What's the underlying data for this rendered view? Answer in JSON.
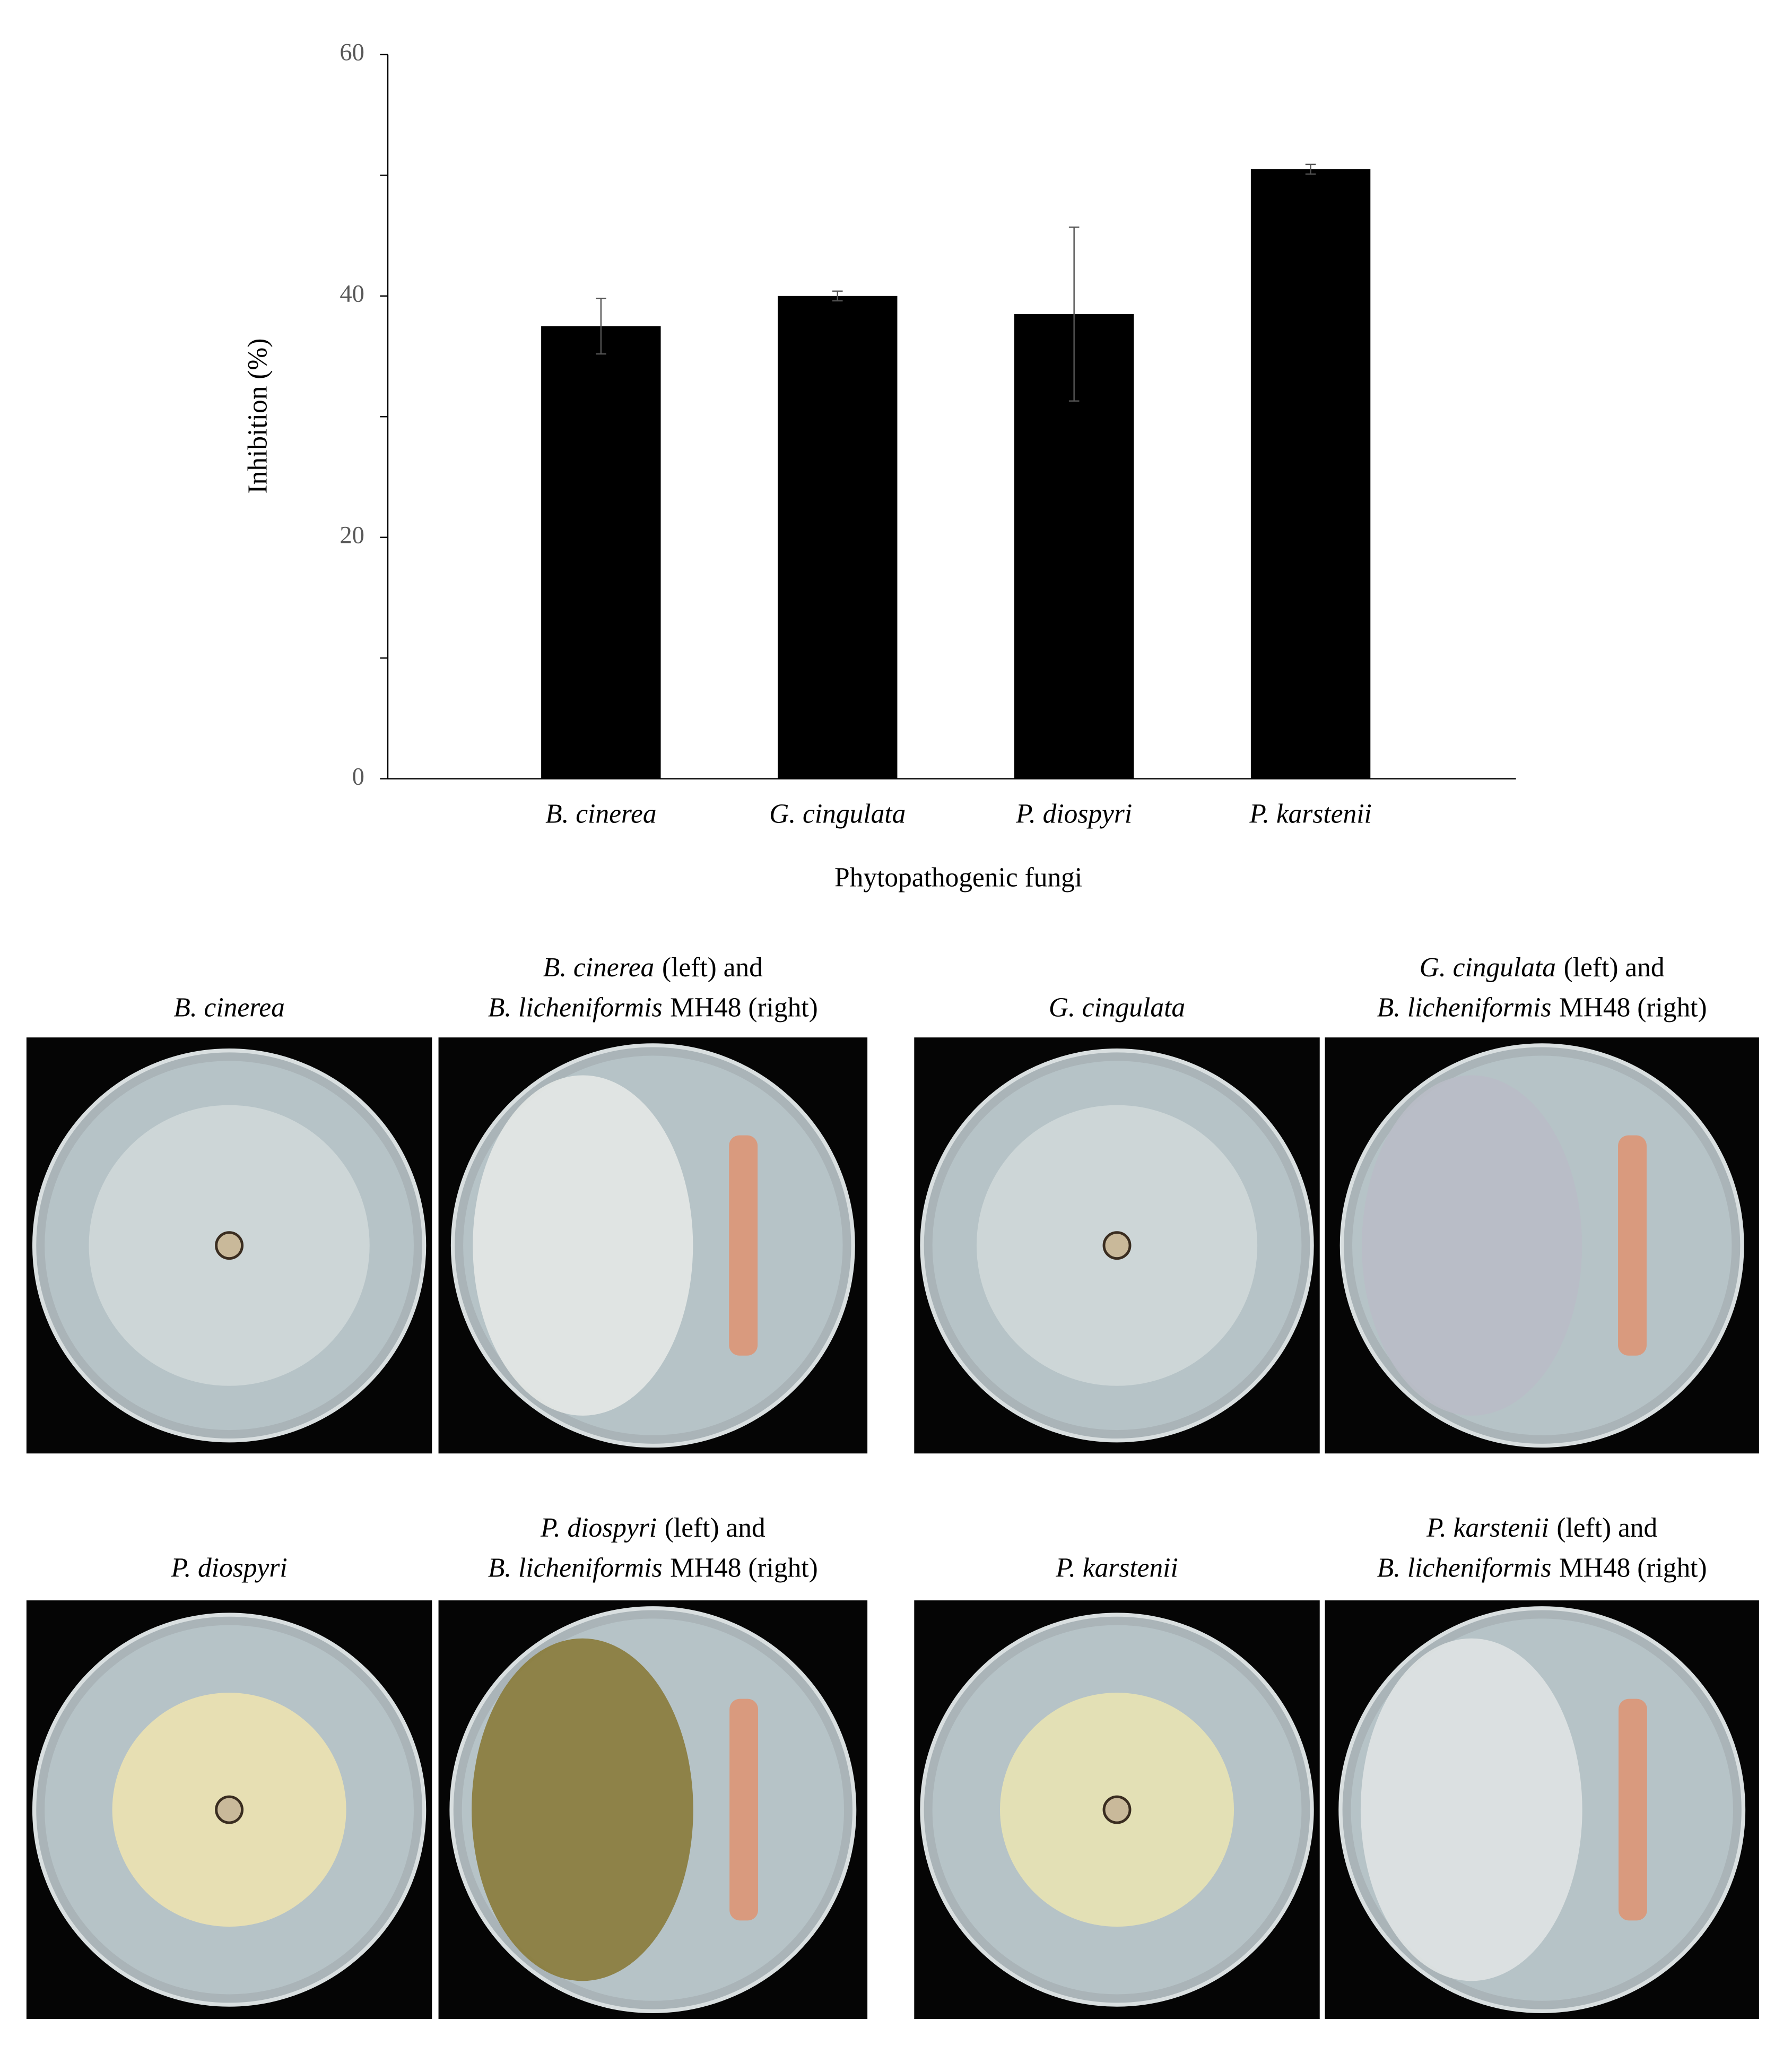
{
  "chart_data": {
    "type": "bar",
    "y_label": "Inhibition (%)",
    "x_label": "Phytopathogenic fungi",
    "categories": [
      "B. cinerea",
      "G. cingulata",
      "P. diospyri",
      "P. karstenii"
    ],
    "values": [
      37.5,
      40,
      38.5,
      50.5
    ],
    "errors": [
      2.3,
      0.4,
      7.2,
      0.4
    ],
    "color": "#000000",
    "ylim": [
      0,
      60
    ],
    "yticks": [
      0,
      20,
      40,
      60
    ],
    "minor_yticks": [
      10,
      30,
      50
    ]
  },
  "panels": [
    {
      "caption": [
        [
          {
            "text": "B. cinerea",
            "italic": true
          }
        ]
      ]
    },
    {
      "caption": [
        [
          {
            "text": "B. cinerea",
            "italic": true
          },
          {
            "text": "(left) and"
          }
        ],
        [
          {
            "text": "B. licheniformis",
            "italic": true
          },
          {
            "text": "MH48 (right)"
          }
        ]
      ]
    },
    {
      "caption": [
        [
          {
            "text": "G. cingulata",
            "italic": true
          }
        ]
      ]
    },
    {
      "caption": [
        [
          {
            "text": "G. cingulata",
            "italic": true
          },
          {
            "text": "(left) and"
          }
        ],
        [
          {
            "text": "B. licheniformis",
            "italic": true
          },
          {
            "text": "MH48 (right)"
          }
        ]
      ]
    },
    {
      "caption": [
        [
          {
            "text": "P. diospyri",
            "italic": true
          }
        ]
      ]
    },
    {
      "caption": [
        [
          {
            "text": "P. diospyri",
            "italic": true
          },
          {
            "text": "(left) and"
          }
        ],
        [
          {
            "text": "B. licheniformis",
            "italic": true
          },
          {
            "text": "MH48 (right)"
          }
        ]
      ]
    },
    {
      "caption": [
        [
          {
            "text": "P. karstenii",
            "italic": true
          }
        ]
      ]
    },
    {
      "caption": [
        [
          {
            "text": "P. karstenii",
            "italic": true
          },
          {
            "text": "(left) and"
          }
        ],
        [
          {
            "text": "B. licheniformis",
            "italic": true
          },
          {
            "text": "MH48 (right)"
          }
        ]
      ]
    }
  ]
}
